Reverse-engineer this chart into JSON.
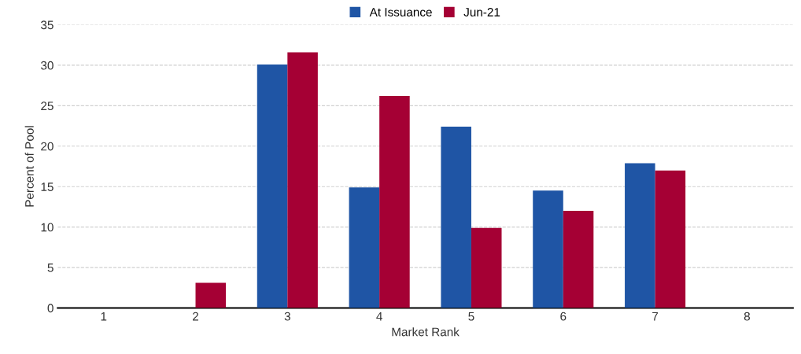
{
  "chart_data": {
    "type": "bar",
    "categories": [
      "1",
      "2",
      "3",
      "4",
      "5",
      "6",
      "7",
      "8"
    ],
    "series": [
      {
        "name": "At Issuance",
        "color": "#1f55a5",
        "values": [
          0,
          0,
          30.1,
          14.9,
          22.4,
          14.5,
          17.9,
          0
        ]
      },
      {
        "name": "Jun-21",
        "color": "#a50034",
        "values": [
          0,
          3.1,
          31.6,
          26.2,
          9.9,
          12.0,
          17.0,
          0
        ]
      }
    ],
    "xlabel": "Market Rank",
    "ylabel": "Percent of Pool",
    "ylim": [
      0,
      35
    ],
    "yticks": [
      0,
      5,
      10,
      15,
      20,
      25,
      30,
      35
    ],
    "grid": "y",
    "legend": "top"
  }
}
